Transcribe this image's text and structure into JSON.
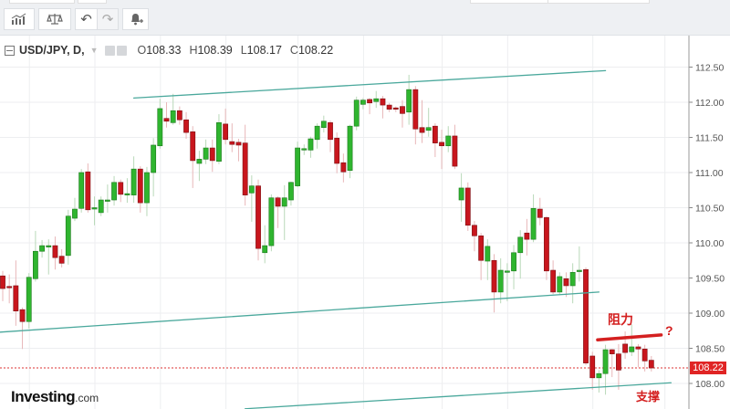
{
  "toolbar": {
    "buttons": [
      {
        "name": "indicators-icon"
      },
      {
        "name": "scale-balance-icon"
      },
      {
        "name": "undo-icon"
      },
      {
        "name": "redo-icon"
      },
      {
        "name": "alert-bell-plus-icon"
      }
    ]
  },
  "legend": {
    "symbol": "USD/JPY, D,",
    "open_label": "O",
    "open": "108.33",
    "high_label": "H",
    "high": "108.39",
    "low_label": "L",
    "low": "108.17",
    "close_label": "C",
    "close": "108.22"
  },
  "logo": {
    "main": "Investing",
    "suffix": ".com"
  },
  "annotations": {
    "resistance": "阻力",
    "question": "?",
    "support": "支撑"
  },
  "colors": {
    "up": "#2fb52f",
    "down": "#c8161d",
    "trendline": "#4aa89c",
    "annotation": "#d42020",
    "price_tag": "#e02424"
  },
  "chart_data": {
    "type": "candlestick",
    "title": "USD/JPY, D",
    "ylim": [
      107.7,
      112.9
    ],
    "y_ticks": [
      "108.00",
      "108.50",
      "109.00",
      "109.50",
      "110.00",
      "110.50",
      "111.00",
      "111.50",
      "112.00",
      "112.50"
    ],
    "last_price": "108.22",
    "grid": true,
    "ohlc": [
      [
        109.53,
        109.6,
        109.17,
        109.35
      ],
      [
        109.38,
        109.55,
        109.14,
        109.37
      ],
      [
        109.39,
        109.75,
        108.82,
        109.03
      ],
      [
        109.05,
        109.08,
        108.49,
        108.88
      ],
      [
        108.88,
        109.57,
        108.78,
        109.51
      ],
      [
        109.49,
        110.17,
        109.45,
        109.88
      ],
      [
        109.88,
        110.04,
        109.79,
        109.96
      ],
      [
        109.96,
        110.05,
        109.55,
        109.96
      ],
      [
        109.96,
        110.09,
        109.62,
        109.79
      ],
      [
        109.81,
        109.91,
        109.65,
        109.71
      ],
      [
        109.82,
        110.47,
        109.69,
        110.38
      ],
      [
        110.35,
        110.64,
        110.31,
        110.48
      ],
      [
        110.49,
        111.05,
        110.43,
        111.0
      ],
      [
        111.01,
        111.13,
        110.43,
        110.47
      ],
      [
        110.49,
        110.66,
        110.25,
        110.5
      ],
      [
        110.43,
        110.66,
        110.38,
        110.61
      ],
      [
        110.6,
        110.83,
        110.43,
        110.61
      ],
      [
        110.61,
        110.95,
        110.53,
        110.86
      ],
      [
        110.86,
        110.9,
        110.58,
        110.69
      ],
      [
        110.69,
        110.92,
        110.57,
        110.7
      ],
      [
        110.68,
        111.23,
        110.57,
        111.05
      ],
      [
        111.05,
        111.09,
        110.43,
        110.57
      ],
      [
        110.57,
        111.08,
        110.38,
        111.0
      ],
      [
        111.0,
        111.49,
        110.66,
        111.39
      ],
      [
        111.38,
        112.05,
        111.34,
        111.91
      ],
      [
        111.77,
        112.0,
        111.64,
        111.73
      ],
      [
        111.71,
        112.12,
        111.68,
        111.88
      ],
      [
        111.88,
        111.94,
        111.68,
        111.75
      ],
      [
        111.75,
        111.86,
        111.48,
        111.57
      ],
      [
        111.58,
        111.66,
        110.78,
        111.17
      ],
      [
        111.13,
        111.31,
        110.88,
        111.19
      ],
      [
        111.19,
        111.47,
        111.12,
        111.35
      ],
      [
        111.35,
        111.47,
        111.01,
        111.17
      ],
      [
        111.16,
        111.83,
        111.12,
        111.71
      ],
      [
        111.69,
        111.91,
        111.4,
        111.47
      ],
      [
        111.44,
        111.7,
        111.29,
        111.4
      ],
      [
        111.43,
        111.48,
        111.16,
        111.39
      ],
      [
        111.42,
        111.68,
        110.53,
        110.68
      ],
      [
        110.71,
        110.96,
        110.3,
        110.81
      ],
      [
        110.81,
        110.9,
        109.75,
        109.92
      ],
      [
        109.86,
        110.25,
        109.71,
        109.96
      ],
      [
        109.96,
        110.69,
        109.88,
        110.64
      ],
      [
        110.64,
        110.66,
        110.21,
        110.52
      ],
      [
        110.52,
        110.82,
        110.04,
        110.64
      ],
      [
        110.61,
        110.87,
        110.53,
        110.86
      ],
      [
        110.81,
        111.44,
        110.79,
        111.35
      ],
      [
        111.33,
        111.4,
        111.25,
        111.34
      ],
      [
        111.32,
        111.51,
        111.21,
        111.48
      ],
      [
        111.47,
        111.7,
        111.34,
        111.66
      ],
      [
        111.64,
        111.81,
        111.57,
        111.73
      ],
      [
        111.71,
        111.74,
        111.29,
        111.47
      ],
      [
        111.49,
        111.57,
        110.99,
        111.13
      ],
      [
        111.14,
        111.27,
        110.86,
        111.01
      ],
      [
        111.03,
        111.68,
        110.92,
        111.66
      ],
      [
        111.66,
        112.08,
        111.6,
        112.03
      ],
      [
        111.97,
        112.06,
        111.9,
        112.03
      ],
      [
        112.04,
        112.06,
        111.83,
        111.99
      ],
      [
        112.01,
        112.16,
        111.92,
        112.05
      ],
      [
        112.05,
        112.09,
        111.77,
        111.96
      ],
      [
        111.96,
        111.99,
        111.86,
        111.9
      ],
      [
        111.92,
        111.94,
        111.86,
        111.91
      ],
      [
        111.94,
        112.03,
        111.64,
        111.84
      ],
      [
        111.86,
        112.39,
        111.68,
        112.18
      ],
      [
        112.18,
        112.23,
        111.4,
        111.62
      ],
      [
        111.64,
        112.03,
        111.42,
        111.57
      ],
      [
        111.6,
        111.92,
        111.51,
        111.64
      ],
      [
        111.66,
        111.7,
        111.22,
        111.42
      ],
      [
        111.43,
        111.61,
        111.05,
        111.38
      ],
      [
        111.38,
        111.66,
        111.29,
        111.52
      ],
      [
        111.52,
        111.68,
        111.05,
        111.09
      ],
      [
        110.61,
        110.99,
        110.3,
        110.78
      ],
      [
        110.78,
        110.86,
        110.17,
        110.25
      ],
      [
        110.25,
        110.31,
        109.88,
        110.1
      ],
      [
        110.1,
        110.14,
        109.47,
        109.75
      ],
      [
        109.74,
        110.05,
        109.47,
        109.95
      ],
      [
        109.75,
        109.84,
        109.01,
        109.3
      ],
      [
        109.3,
        109.78,
        109.14,
        109.61
      ],
      [
        109.59,
        109.71,
        109.17,
        109.6
      ],
      [
        109.6,
        109.97,
        109.34,
        109.86
      ],
      [
        109.86,
        110.18,
        109.49,
        110.08
      ],
      [
        110.14,
        110.34,
        109.82,
        110.05
      ],
      [
        110.05,
        110.69,
        110.01,
        110.49
      ],
      [
        110.48,
        110.64,
        110.25,
        110.36
      ],
      [
        110.36,
        110.38,
        109.47,
        109.6
      ],
      [
        109.61,
        109.75,
        109.27,
        109.3
      ],
      [
        109.3,
        109.58,
        109.27,
        109.52
      ],
      [
        109.49,
        109.58,
        109.23,
        109.39
      ],
      [
        109.39,
        109.71,
        109.14,
        109.58
      ],
      [
        109.6,
        109.95,
        109.45,
        109.61
      ],
      [
        109.62,
        109.65,
        108.26,
        108.29
      ],
      [
        108.39,
        108.45,
        107.91,
        108.08
      ],
      [
        108.08,
        108.19,
        107.87,
        108.14
      ],
      [
        108.14,
        108.55,
        107.84,
        108.48
      ],
      [
        108.48,
        108.49,
        108.09,
        108.42
      ],
      [
        108.42,
        108.56,
        107.91,
        108.19
      ],
      [
        108.56,
        108.74,
        108.35,
        108.44
      ],
      [
        108.45,
        108.84,
        108.39,
        108.52
      ],
      [
        108.52,
        108.56,
        108.23,
        108.49
      ],
      [
        108.49,
        108.55,
        108.17,
        108.32
      ],
      [
        108.33,
        108.39,
        108.17,
        108.22
      ]
    ],
    "trendlines": [
      {
        "name": "upper-channel",
        "from": [
          20,
          112.06
        ],
        "to": [
          92,
          112.45
        ]
      },
      {
        "name": "lower-channel",
        "from": [
          -0.4,
          108.73
        ],
        "to": [
          91,
          109.3
        ]
      },
      {
        "name": "support",
        "from": [
          37,
          107.64
        ],
        "to": [
          102,
          108.01
        ]
      },
      {
        "name": "resistance",
        "from": [
          90.8,
          108.62
        ],
        "to": [
          100.5,
          108.69
        ]
      }
    ],
    "date_grid_candles": [
      4,
      14,
      24,
      34,
      45,
      55,
      67,
      77,
      90,
      101
    ]
  }
}
